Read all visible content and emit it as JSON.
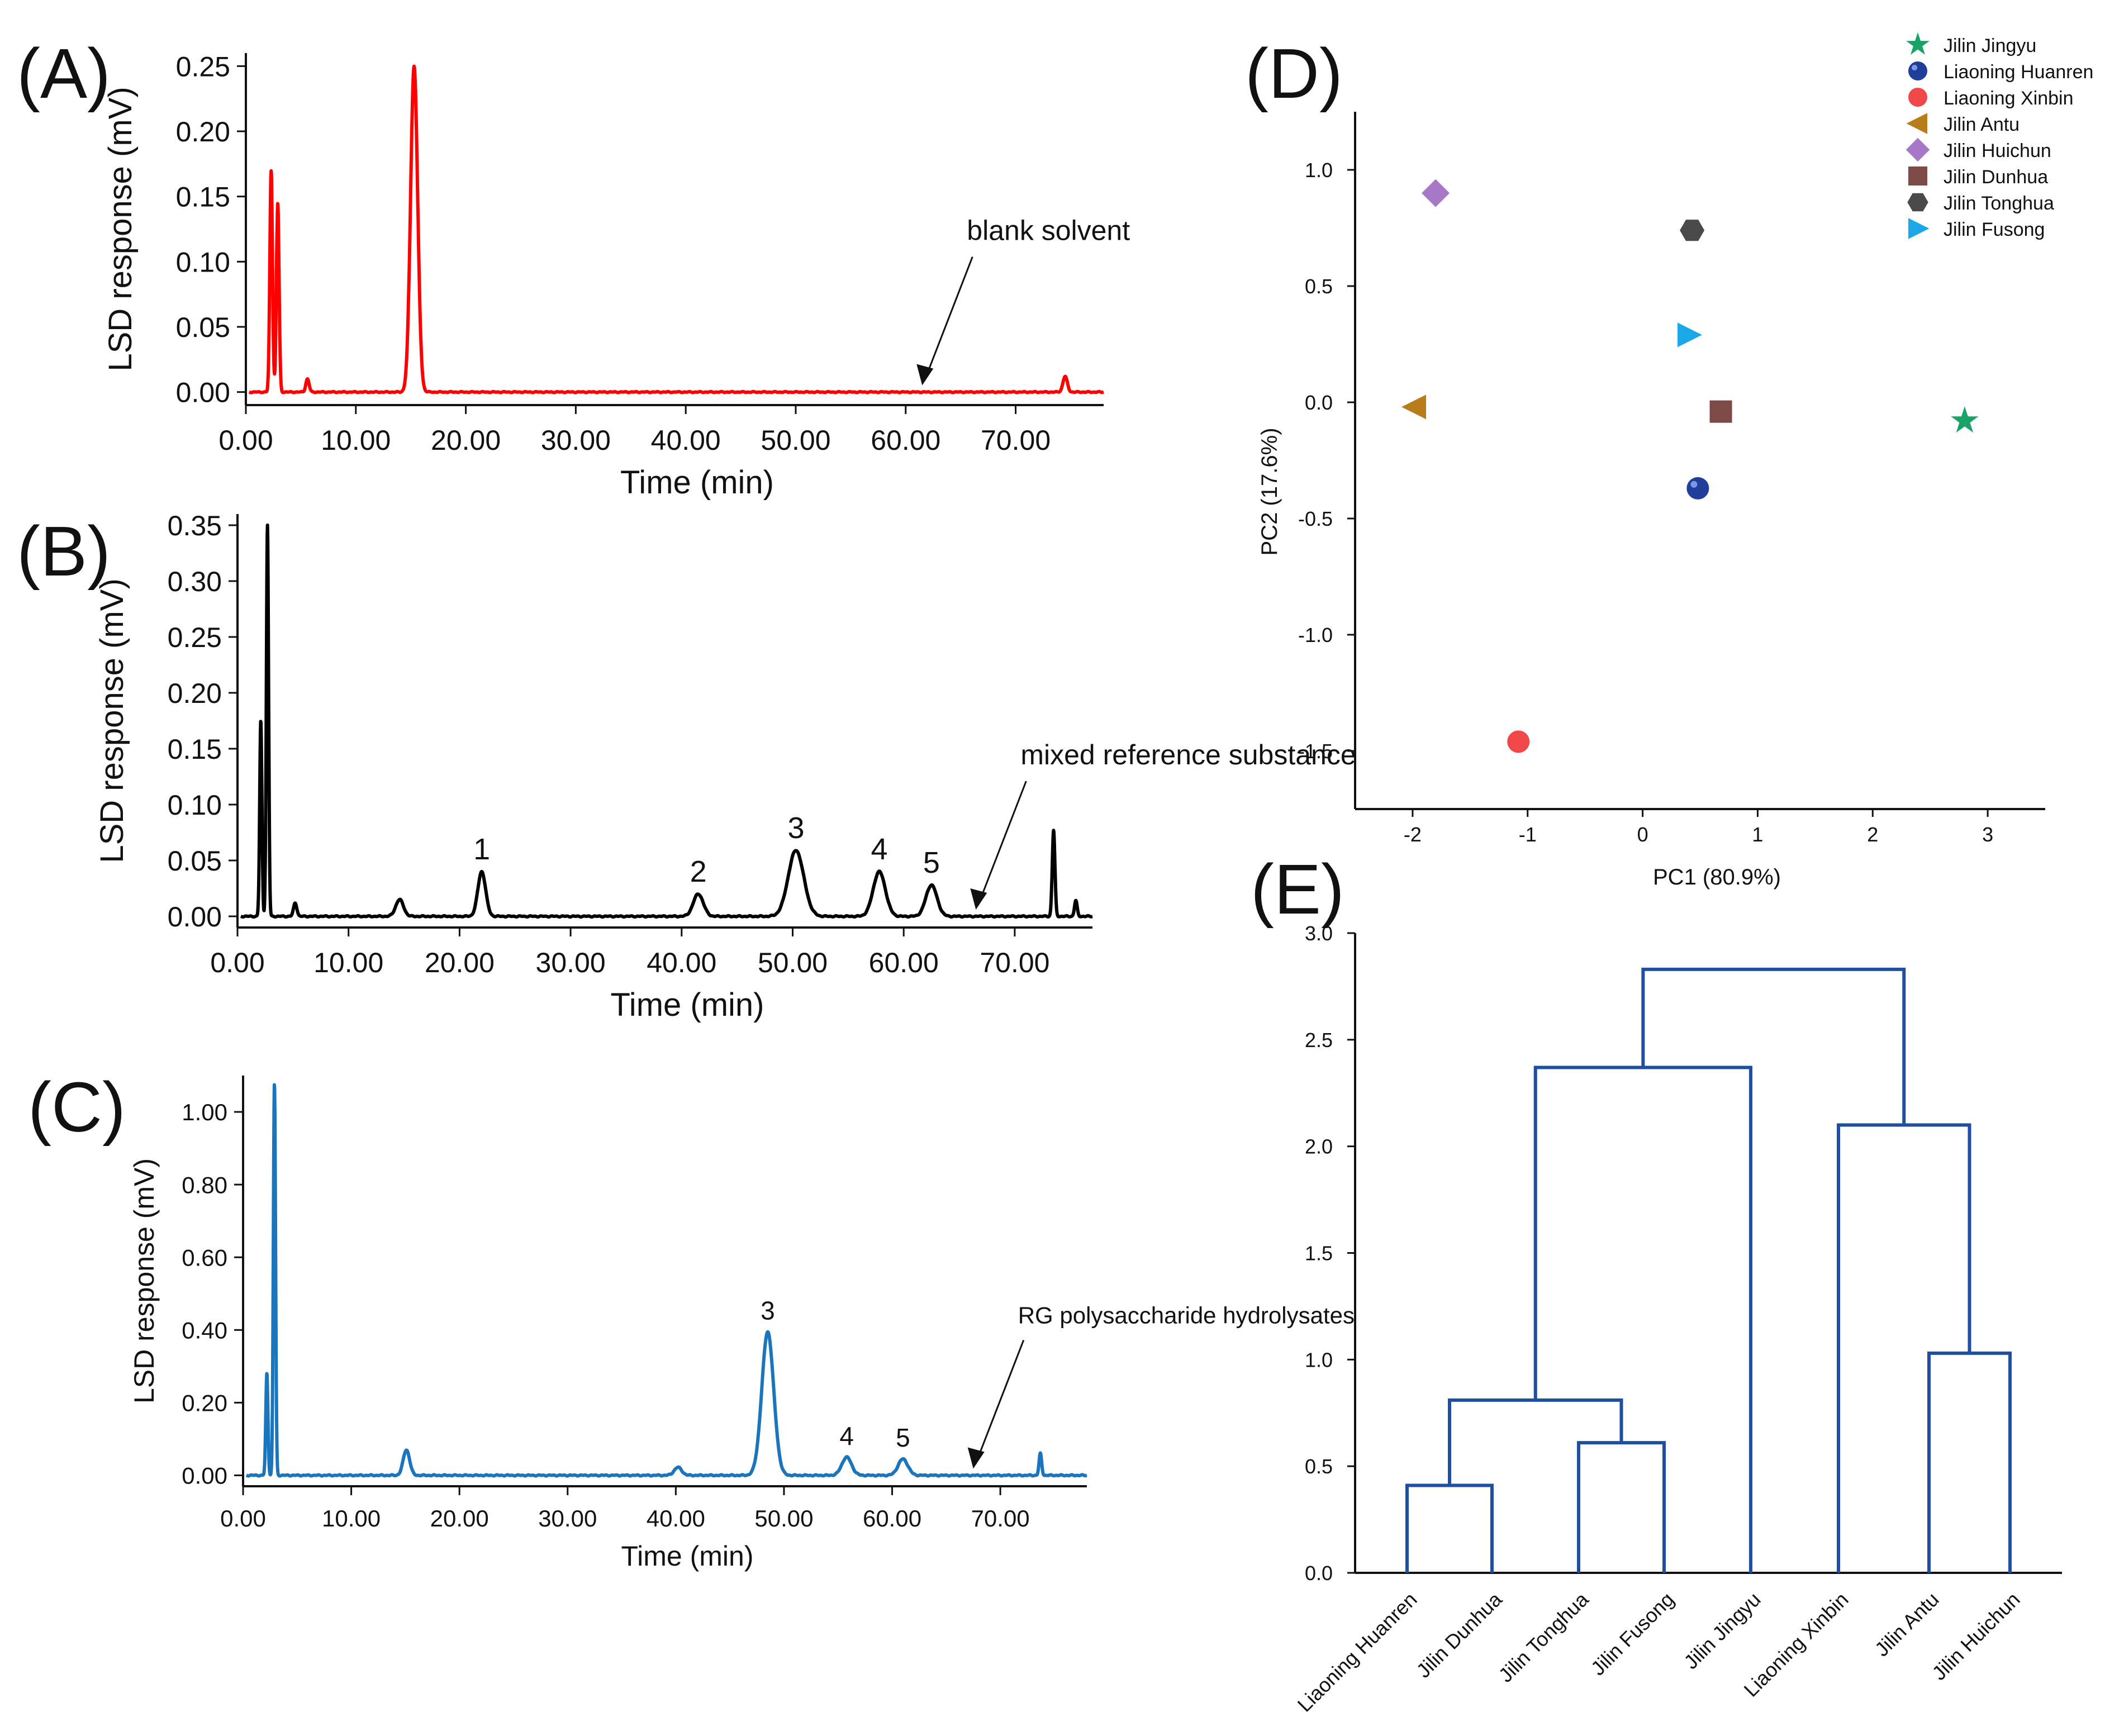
{
  "chart_data": [
    {
      "panel_label": "(A)",
      "type": "line",
      "xlabel": "Time (min)",
      "ylabel": "LSD response (mV)",
      "xlim": [
        0,
        78
      ],
      "ylim": [
        -0.01,
        0.26
      ],
      "x_ticks": [
        "0.00",
        "10.00",
        "20.00",
        "30.00",
        "40.00",
        "50.00",
        "60.00",
        "70.00"
      ],
      "y_ticks": [
        "0.00",
        "0.05",
        "0.10",
        "0.15",
        "0.20",
        "0.25"
      ],
      "color": "#ff0000",
      "baseline": 0.0,
      "peaks": [
        {
          "x": 2.3,
          "y": 0.17,
          "w": 0.12
        },
        {
          "x": 2.9,
          "y": 0.145,
          "w": 0.12
        },
        {
          "x": 5.6,
          "y": 0.01,
          "w": 0.15
        },
        {
          "x": 15.3,
          "y": 0.25,
          "w": 0.32
        },
        {
          "x": 74.5,
          "y": 0.012,
          "w": 0.2
        }
      ],
      "annotation": {
        "text": "blank solvent",
        "x": 61.5,
        "y": 0.0
      }
    },
    {
      "panel_label": "(B)",
      "type": "line",
      "xlabel": "Time (min)",
      "ylabel": "LSD response (mV)",
      "xlim": [
        0,
        77
      ],
      "ylim": [
        -0.01,
        0.36
      ],
      "x_ticks": [
        "0.00",
        "10.00",
        "20.00",
        "30.00",
        "40.00",
        "50.00",
        "60.00",
        "70.00"
      ],
      "y_ticks": [
        "0.00",
        "0.05",
        "0.10",
        "0.15",
        "0.20",
        "0.25",
        "0.30",
        "0.35"
      ],
      "color": "#000000",
      "baseline": 0.0,
      "peaks": [
        {
          "x": 2.1,
          "y": 0.175,
          "w": 0.1
        },
        {
          "x": 2.7,
          "y": 0.35,
          "w": 0.1
        },
        {
          "x": 5.2,
          "y": 0.012,
          "w": 0.15
        },
        {
          "x": 14.6,
          "y": 0.015,
          "w": 0.35
        },
        {
          "x": 22.0,
          "y": 0.04,
          "w": 0.35
        },
        {
          "x": 41.5,
          "y": 0.02,
          "w": 0.45
        },
        {
          "x": 50.3,
          "y": 0.059,
          "w": 0.7
        },
        {
          "x": 57.8,
          "y": 0.04,
          "w": 0.55
        },
        {
          "x": 62.5,
          "y": 0.028,
          "w": 0.5
        },
        {
          "x": 73.5,
          "y": 0.077,
          "w": 0.12
        },
        {
          "x": 75.5,
          "y": 0.014,
          "w": 0.12
        }
      ],
      "peak_labels": [
        {
          "text": "1",
          "x": 22.0,
          "y": 0.04
        },
        {
          "text": "2",
          "x": 41.5,
          "y": 0.02
        },
        {
          "text": "3",
          "x": 50.3,
          "y": 0.059
        },
        {
          "text": "4",
          "x": 57.8,
          "y": 0.04
        },
        {
          "text": "5",
          "x": 62.5,
          "y": 0.028
        }
      ],
      "annotation": {
        "text": "mixed reference substance",
        "x": 66.5,
        "y": 0.0
      }
    },
    {
      "panel_label": "(C)",
      "type": "line",
      "xlabel": "Time (min)",
      "ylabel": "LSD response (mV)",
      "xlim": [
        0,
        78
      ],
      "ylim": [
        -0.03,
        1.1
      ],
      "x_ticks": [
        "0.00",
        "10.00",
        "20.00",
        "30.00",
        "40.00",
        "50.00",
        "60.00",
        "70.00"
      ],
      "y_ticks": [
        "0.00",
        "0.20",
        "0.40",
        "0.60",
        "0.80",
        "1.00"
      ],
      "color": "#1a75bc",
      "baseline": 0.0,
      "peaks": [
        {
          "x": 2.2,
          "y": 0.28,
          "w": 0.1
        },
        {
          "x": 2.9,
          "y": 1.08,
          "w": 0.1
        },
        {
          "x": 15.1,
          "y": 0.07,
          "w": 0.3
        },
        {
          "x": 40.2,
          "y": 0.022,
          "w": 0.35
        },
        {
          "x": 48.5,
          "y": 0.395,
          "w": 0.55
        },
        {
          "x": 55.8,
          "y": 0.05,
          "w": 0.45
        },
        {
          "x": 61.0,
          "y": 0.045,
          "w": 0.45
        },
        {
          "x": 73.7,
          "y": 0.06,
          "w": 0.12
        }
      ],
      "peak_labels": [
        {
          "text": "3",
          "x": 48.5,
          "y": 0.395
        },
        {
          "text": "4",
          "x": 55.8,
          "y": 0.05
        },
        {
          "text": "5",
          "x": 61.0,
          "y": 0.045
        }
      ],
      "annotation": {
        "text": "RG polysaccharide hydrolysates",
        "x": 67.5,
        "y": 0.0
      }
    },
    {
      "panel_label": "(D)",
      "type": "scatter",
      "xlabel": "PC1 (80.9%)",
      "ylabel": "PC2 (17.6%)",
      "xlim": [
        -2.5,
        3.5
      ],
      "ylim": [
        -1.75,
        1.25
      ],
      "x_ticks": [
        "-2",
        "-1",
        "0",
        "1",
        "2",
        "3"
      ],
      "y_ticks": [
        "1.0",
        "0.5",
        "0.0",
        "-0.5",
        "-1.0",
        "-1.5"
      ],
      "legend_position": "top-right",
      "series": [
        {
          "name": "Jilin Jingyu",
          "marker": "star",
          "color": "#1aa366",
          "x": 2.8,
          "y": -0.08
        },
        {
          "name": "Liaoning Huanren",
          "marker": "sphere",
          "color": "#1f3f9a",
          "x": 0.48,
          "y": -0.37
        },
        {
          "name": "Liaoning Xinbin",
          "marker": "circle",
          "color": "#f04848",
          "x": -1.08,
          "y": -1.46
        },
        {
          "name": "Jilin Antu",
          "marker": "triangle-left",
          "color": "#b87c1a",
          "x": -1.98,
          "y": -0.02
        },
        {
          "name": "Jilin Huichun",
          "marker": "diamond",
          "color": "#a878c8",
          "x": -1.8,
          "y": 0.9
        },
        {
          "name": "Jilin Dunhua",
          "marker": "square",
          "color": "#7e4a48",
          "x": 0.68,
          "y": -0.04
        },
        {
          "name": "Jilin Tonghua",
          "marker": "hexagon",
          "color": "#4a4a4a",
          "x": 0.43,
          "y": 0.74
        },
        {
          "name": "Jilin Fusong",
          "marker": "triangle-right",
          "color": "#1aa8e8",
          "x": 0.4,
          "y": 0.29
        }
      ]
    },
    {
      "panel_label": "(E)",
      "type": "dendrogram",
      "ylim": [
        0,
        3.0
      ],
      "y_ticks": [
        "0.0",
        "0.5",
        "1.0",
        "1.5",
        "2.0",
        "2.5",
        "3.0"
      ],
      "color": "#1f4fa0",
      "leaves": [
        "Liaoning Huanren",
        "Jilin Dunhua",
        "Jilin Tonghua",
        "Jilin Fusong",
        "Jilin Jingyu",
        "Liaoning Xinbin",
        "Jilin Antu",
        "Jilin Huichun"
      ],
      "merges": [
        {
          "a": 0,
          "b": 1,
          "h": 0.41
        },
        {
          "a": 2,
          "b": 3,
          "h": 0.61
        },
        {
          "a": 8,
          "b": 9,
          "h": 0.81
        },
        {
          "a": 10,
          "b": 4,
          "h": 2.37
        },
        {
          "a": 6,
          "b": 7,
          "h": 1.03
        },
        {
          "a": 5,
          "b": 12,
          "h": 2.1
        },
        {
          "a": 11,
          "b": 13,
          "h": 2.83
        }
      ]
    }
  ]
}
